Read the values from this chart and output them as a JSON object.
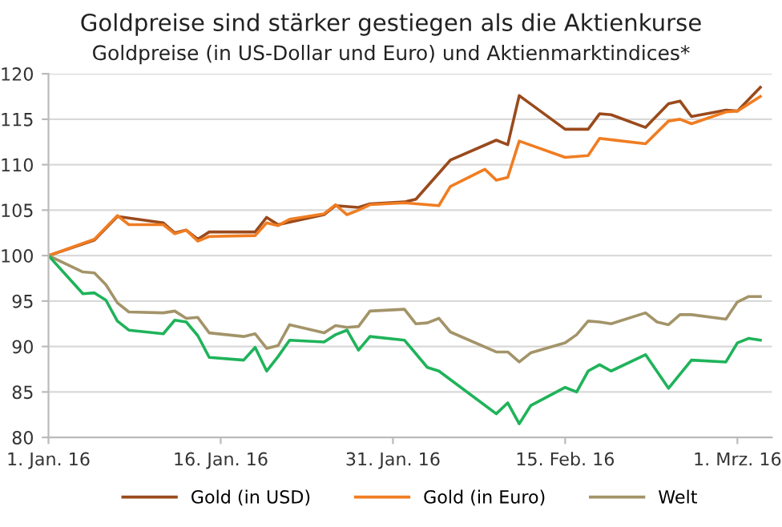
{
  "chart_data": {
    "type": "line",
    "title": "Goldpreise sind stärker gestiegen als die Aktienkurse",
    "subtitle": "Goldpreise (in US-Dollar und Euro) und Aktienmarktindices*",
    "xlim": [
      "2016-01-01",
      "2016-03-04"
    ],
    "ylim": [
      80,
      120
    ],
    "yticks": [
      80,
      85,
      90,
      95,
      100,
      105,
      110,
      115,
      120
    ],
    "xticks": [
      {
        "value": "2016-01-01",
        "label": "1. Jan. 16"
      },
      {
        "value": "2016-01-16",
        "label": "16. Jan. 16"
      },
      {
        "value": "2016-01-31",
        "label": "31. Jan. 16"
      },
      {
        "value": "2016-02-15",
        "label": "15. Feb. 16"
      },
      {
        "value": "2016-03-01",
        "label": "1. Mrz. 16"
      }
    ],
    "grid": "y",
    "legend": "bottom",
    "marker": "none",
    "line_style": "solid",
    "series": [
      {
        "name": "Gold (in USD)",
        "color": "#9a4a1c",
        "x": [
          "2016-01-01",
          "2016-01-05",
          "2016-01-07",
          "2016-01-11",
          "2016-01-12",
          "2016-01-13",
          "2016-01-14",
          "2016-01-15",
          "2016-01-19",
          "2016-01-20",
          "2016-01-21",
          "2016-01-25",
          "2016-01-26",
          "2016-01-28",
          "2016-01-29",
          "2016-02-01",
          "2016-02-02",
          "2016-02-05",
          "2016-02-09",
          "2016-02-10",
          "2016-02-11",
          "2016-02-15",
          "2016-02-17",
          "2016-02-18",
          "2016-02-19",
          "2016-02-22",
          "2016-02-24",
          "2016-02-25",
          "2016-02-26",
          "2016-02-29",
          "2016-03-01",
          "2016-03-03"
        ],
        "values": [
          100,
          101.7,
          104.3,
          103.6,
          102.5,
          102.8,
          101.8,
          102.6,
          102.6,
          104.2,
          103.4,
          104.5,
          105.5,
          105.3,
          105.7,
          105.9,
          106.2,
          110.5,
          112.7,
          112.2,
          117.6,
          113.9,
          113.9,
          115.6,
          115.5,
          114.1,
          116.7,
          117,
          115.3,
          116,
          115.9,
          118.5
        ]
      },
      {
        "name": "Gold (in Euro)",
        "color": "#f07d22",
        "x": [
          "2016-01-01",
          "2016-01-05",
          "2016-01-07",
          "2016-01-08",
          "2016-01-11",
          "2016-01-12",
          "2016-01-13",
          "2016-01-14",
          "2016-01-15",
          "2016-01-19",
          "2016-01-20",
          "2016-01-21",
          "2016-01-22",
          "2016-01-25",
          "2016-01-26",
          "2016-01-27",
          "2016-01-28",
          "2016-01-29",
          "2016-02-01",
          "2016-02-04",
          "2016-02-05",
          "2016-02-08",
          "2016-02-09",
          "2016-02-10",
          "2016-02-11",
          "2016-02-15",
          "2016-02-17",
          "2016-02-18",
          "2016-02-22",
          "2016-02-24",
          "2016-02-25",
          "2016-02-26",
          "2016-02-29",
          "2016-03-01",
          "2016-03-03"
        ],
        "values": [
          100,
          101.8,
          104.4,
          103.4,
          103.4,
          102.4,
          102.8,
          101.6,
          102.1,
          102.2,
          103.6,
          103.3,
          104,
          104.6,
          105.6,
          104.5,
          105,
          105.6,
          105.8,
          105.5,
          107.6,
          109.5,
          108.3,
          108.6,
          112.6,
          110.8,
          111,
          112.9,
          112.3,
          114.8,
          115,
          114.5,
          115.8,
          115.9,
          117.5
        ]
      },
      {
        "name": "Welt",
        "color": "#a39469",
        "x": [
          "2016-01-01",
          "2016-01-04",
          "2016-01-05",
          "2016-01-06",
          "2016-01-07",
          "2016-01-08",
          "2016-01-11",
          "2016-01-12",
          "2016-01-13",
          "2016-01-14",
          "2016-01-15",
          "2016-01-18",
          "2016-01-19",
          "2016-01-20",
          "2016-01-21",
          "2016-01-22",
          "2016-01-25",
          "2016-01-26",
          "2016-01-27",
          "2016-01-28",
          "2016-01-29",
          "2016-02-01",
          "2016-02-02",
          "2016-02-03",
          "2016-02-04",
          "2016-02-05",
          "2016-02-09",
          "2016-02-10",
          "2016-02-11",
          "2016-02-12",
          "2016-02-15",
          "2016-02-16",
          "2016-02-17",
          "2016-02-18",
          "2016-02-19",
          "2016-02-22",
          "2016-02-23",
          "2016-02-24",
          "2016-02-25",
          "2016-02-26",
          "2016-02-29",
          "2016-03-01",
          "2016-03-02",
          "2016-03-03"
        ],
        "values": [
          100,
          98.2,
          98.1,
          96.8,
          94.8,
          93.8,
          93.7,
          93.9,
          93.1,
          93.2,
          91.5,
          91.1,
          91.4,
          89.8,
          90.1,
          92.4,
          91.5,
          92.3,
          92.1,
          92.2,
          93.9,
          94.1,
          92.5,
          92.6,
          93.1,
          91.6,
          89.4,
          89.4,
          88.3,
          89.3,
          90.4,
          91.3,
          92.8,
          92.7,
          92.5,
          93.7,
          92.7,
          92.4,
          93.5,
          93.5,
          93,
          94.9,
          95.5,
          95.5
        ]
      },
      {
        "color": "#1fb35a",
        "x": [
          "2016-01-01",
          "2016-01-04",
          "2016-01-05",
          "2016-01-06",
          "2016-01-07",
          "2016-01-08",
          "2016-01-11",
          "2016-01-12",
          "2016-01-13",
          "2016-01-14",
          "2016-01-15",
          "2016-01-18",
          "2016-01-19",
          "2016-01-20",
          "2016-01-21",
          "2016-01-22",
          "2016-01-25",
          "2016-01-26",
          "2016-01-27",
          "2016-01-28",
          "2016-01-29",
          "2016-02-01",
          "2016-02-03",
          "2016-02-04",
          "2016-02-09",
          "2016-02-10",
          "2016-02-11",
          "2016-02-12",
          "2016-02-15",
          "2016-02-16",
          "2016-02-17",
          "2016-02-18",
          "2016-02-19",
          "2016-02-22",
          "2016-02-24",
          "2016-02-26",
          "2016-02-29",
          "2016-03-01",
          "2016-03-02",
          "2016-03-03"
        ],
        "values": [
          100,
          95.8,
          95.9,
          95.1,
          92.8,
          91.8,
          91.4,
          92.9,
          92.7,
          91.2,
          88.8,
          88.5,
          89.9,
          87.3,
          88.9,
          90.7,
          90.5,
          91.3,
          91.8,
          89.6,
          91.1,
          90.7,
          87.7,
          87.3,
          82.6,
          83.8,
          81.5,
          83.5,
          85.5,
          85,
          87.3,
          88,
          87.3,
          89.1,
          85.4,
          88.5,
          88.3,
          90.4,
          90.9,
          90.7
        ]
      }
    ]
  }
}
